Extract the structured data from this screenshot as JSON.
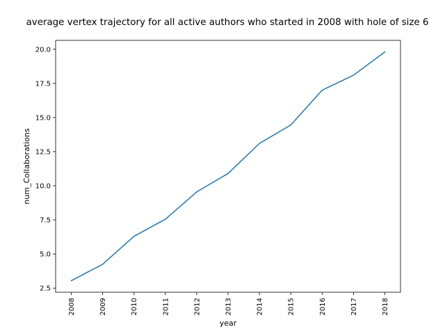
{
  "chart_data": {
    "type": "line",
    "title": "average vertex trajectory for all active authors who started in 2008 with hole of size 6",
    "xlabel": "year",
    "ylabel": "num_Collaborations",
    "x": [
      "2008",
      "2009",
      "2010",
      "2011",
      "2012",
      "2013",
      "2014",
      "2015",
      "2016",
      "2017",
      "2018"
    ],
    "series": [
      {
        "values": [
          3.05,
          4.25,
          6.3,
          7.55,
          9.55,
          10.9,
          13.1,
          14.45,
          17.0,
          18.1,
          19.8
        ]
      }
    ],
    "yticks": [
      "2.5",
      "5.0",
      "7.5",
      "10.0",
      "12.5",
      "15.0",
      "17.5",
      "20.0"
    ],
    "ylim": [
      2.2,
      20.65
    ],
    "grid": false,
    "colors": {
      "line": "#1f77b4",
      "axes": "#000000"
    }
  }
}
